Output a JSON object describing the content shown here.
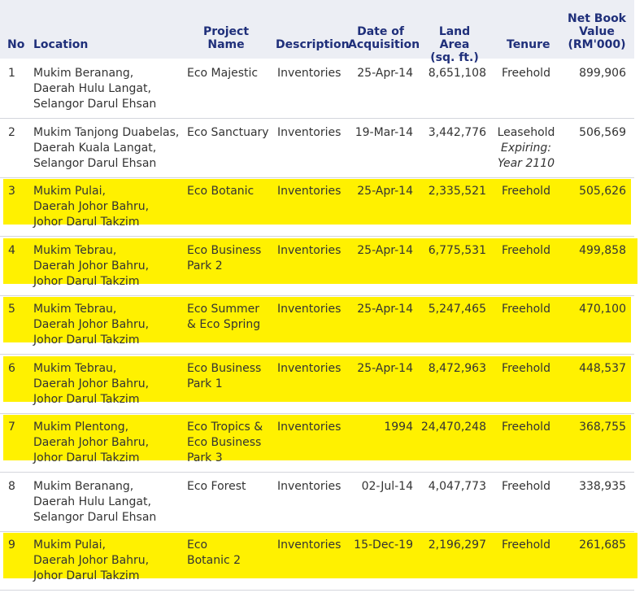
{
  "columns": {
    "no": "No",
    "location": "Location",
    "project": [
      "Project",
      "Name"
    ],
    "description": "Description",
    "date": [
      "Date of",
      "Acquisition"
    ],
    "land": [
      "Land Area",
      "(sq. ft.)"
    ],
    "tenure": "Tenure",
    "nbv": [
      "Net Book",
      "Value",
      "(RM'000)"
    ]
  },
  "rows": [
    {
      "no": "1",
      "location": [
        "Mukim Beranang,",
        "Daerah Hulu Langat,",
        "Selangor Darul Ehsan"
      ],
      "project": [
        "Eco Majestic"
      ],
      "description": "Inventories",
      "date": "25-Apr-14",
      "land": "8,651,108",
      "tenure": [
        "Freehold"
      ],
      "nbv": "899,906",
      "highlighted": false
    },
    {
      "no": "2",
      "location": [
        "Mukim Tanjong Duabelas,",
        "Daerah Kuala Langat,",
        "Selangor Darul Ehsan"
      ],
      "project": [
        "Eco Sanctuary"
      ],
      "description": "Inventories",
      "date": "19-Mar-14",
      "land": "3,442,776",
      "tenure": [
        "Leasehold",
        "Expiring:",
        "Year 2110"
      ],
      "nbv": "506,569",
      "highlighted": false
    },
    {
      "no": "3",
      "location": [
        "Mukim Pulai,",
        "Daerah Johor Bahru,",
        "Johor Darul Takzim"
      ],
      "project": [
        "Eco Botanic"
      ],
      "description": "Inventories",
      "date": "25-Apr-14",
      "land": "2,335,521",
      "tenure": [
        "Freehold"
      ],
      "nbv": "505,626",
      "highlighted": true
    },
    {
      "no": "4",
      "location": [
        "Mukim Tebrau,",
        "Daerah Johor Bahru,",
        "Johor Darul Takzim"
      ],
      "project": [
        "Eco Business",
        "Park 2"
      ],
      "description": "Inventories",
      "date": "25-Apr-14",
      "land": "6,775,531",
      "tenure": [
        "Freehold"
      ],
      "nbv": "499,858",
      "highlighted": true
    },
    {
      "no": "5",
      "location": [
        "Mukim Tebrau,",
        "Daerah Johor Bahru,",
        "Johor Darul Takzim"
      ],
      "project": [
        "Eco Summer",
        "& Eco Spring"
      ],
      "description": "Inventories",
      "date": "25-Apr-14",
      "land": "5,247,465",
      "tenure": [
        "Freehold"
      ],
      "nbv": "470,100",
      "highlighted": true
    },
    {
      "no": "6",
      "location": [
        "Mukim Tebrau,",
        "Daerah Johor Bahru,",
        "Johor Darul Takzim"
      ],
      "project": [
        "Eco Business",
        "Park 1"
      ],
      "description": "Inventories",
      "date": "25-Apr-14",
      "land": "8,472,963",
      "tenure": [
        "Freehold"
      ],
      "nbv": "448,537",
      "highlighted": true
    },
    {
      "no": "7",
      "location": [
        "Mukim Plentong,",
        "Daerah Johor Bahru,",
        "Johor Darul Takzim"
      ],
      "project": [
        "Eco Tropics &",
        "Eco Business",
        "Park 3"
      ],
      "description": "Inventories",
      "date": "1994",
      "land": "24,470,248",
      "tenure": [
        "Freehold"
      ],
      "nbv": "368,755",
      "highlighted": true
    },
    {
      "no": "8",
      "location": [
        "Mukim Beranang,",
        "Daerah Hulu Langat,",
        "Selangor Darul Ehsan"
      ],
      "project": [
        "Eco Forest"
      ],
      "description": "Inventories",
      "date": "02-Jul-14",
      "land": "4,047,773",
      "tenure": [
        "Freehold"
      ],
      "nbv": "338,935",
      "highlighted": false
    },
    {
      "no": "9",
      "location": [
        "Mukim Pulai,",
        "Daerah Johor Bahru,",
        "Johor Darul Takzim"
      ],
      "project": [
        "Eco",
        "Botanic 2"
      ],
      "description": "Inventories",
      "date": "15-Dec-19",
      "land": "2,196,297",
      "tenure": [
        "Freehold"
      ],
      "nbv": "261,685",
      "highlighted": true
    }
  ],
  "colors": {
    "header_text": "#1f2f7a",
    "header_bg": "#eceef4",
    "highlight": "#fff100",
    "separator": "#d4d6dc",
    "body_text": "#333333"
  }
}
